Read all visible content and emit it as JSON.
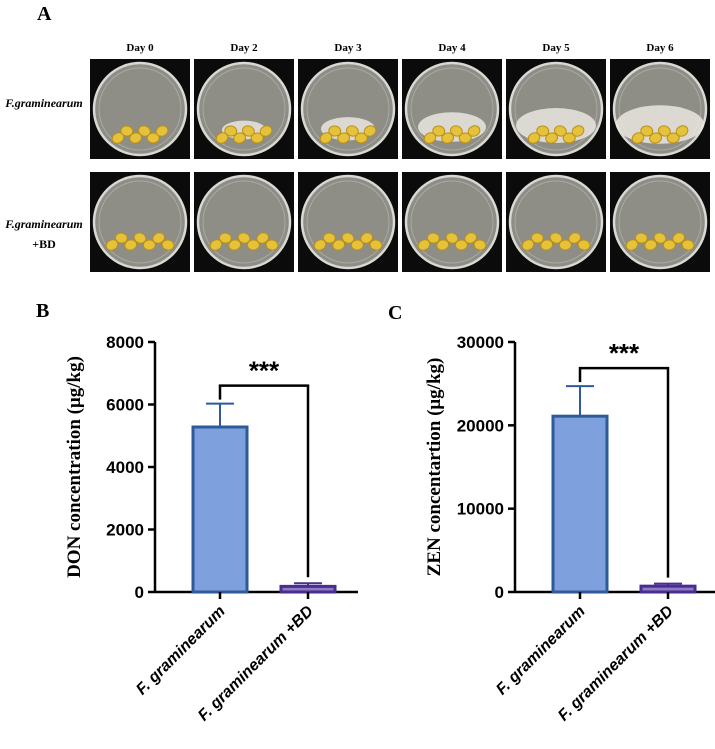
{
  "panel_a": {
    "letter": "A",
    "days": [
      "Day 0",
      "Day 2",
      "Day 3",
      "Day 4",
      "Day 5",
      "Day 6"
    ],
    "rows": [
      {
        "label_italic": "F.graminearum",
        "label_rest": ""
      },
      {
        "label_italic": "F.graminearum",
        "label_rest": "+BD"
      }
    ]
  },
  "chart_data": [
    {
      "type": "bar",
      "panel_letter": "B",
      "categories": [
        "F. graminearum",
        "F. graminearum +BD"
      ],
      "values": [
        5280,
        180
      ],
      "errors": [
        750,
        100
      ],
      "ylabel": "DON concentration (μg/kg)",
      "ylim": [
        0,
        8000
      ],
      "yticks": [
        0,
        2000,
        4000,
        6000,
        8000
      ],
      "significance": "***",
      "bar_colors": [
        "#7ea1dd",
        "#8e7cc3"
      ],
      "edge_colors": [
        "#2e5a9a",
        "#4b2d91"
      ]
    },
    {
      "type": "bar",
      "panel_letter": "C",
      "categories": [
        "F. graminearum",
        "F. graminearum +BD"
      ],
      "values": [
        21100,
        700
      ],
      "errors": [
        3600,
        300
      ],
      "ylabel": "ZEN concentartion (μg/kg)",
      "ylim": [
        0,
        30000
      ],
      "yticks": [
        0,
        10000,
        20000,
        30000
      ],
      "significance": "***",
      "bar_colors": [
        "#7ea1dd",
        "#8e7cc3"
      ],
      "edge_colors": [
        "#2e5a9a",
        "#4b2d91"
      ]
    }
  ]
}
